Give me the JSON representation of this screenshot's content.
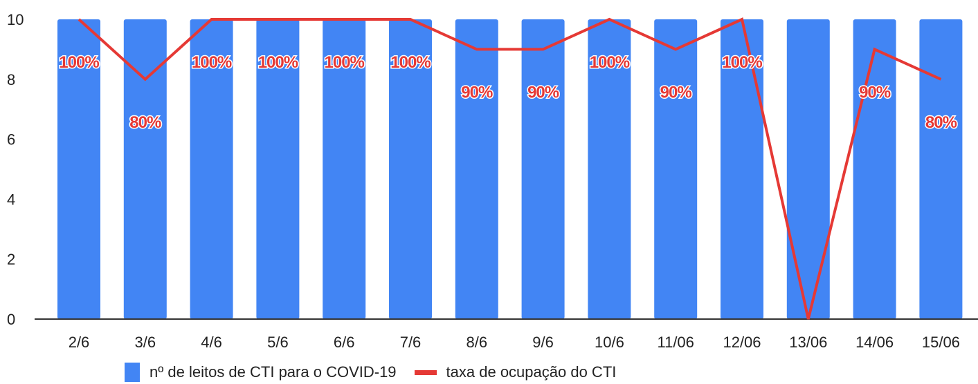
{
  "chart_data": {
    "type": "bar",
    "categories": [
      "2/6",
      "3/6",
      "4/6",
      "5/6",
      "6/6",
      "7/6",
      "8/6",
      "9/6",
      "10/6",
      "11/06",
      "12/06",
      "13/06",
      "14/06",
      "15/06"
    ],
    "series": [
      {
        "name": "nº de leitos de CTI para o COVID-19",
        "kind": "bar",
        "values": [
          10,
          10,
          10,
          10,
          10,
          10,
          10,
          10,
          10,
          10,
          10,
          10,
          10,
          10
        ]
      },
      {
        "name": "taxa de ocupação do CTI",
        "kind": "line",
        "values": [
          10,
          8,
          10,
          10,
          10,
          10,
          9,
          9,
          10,
          9,
          10,
          0,
          9,
          8
        ],
        "labels": [
          "100%",
          "80%",
          "100%",
          "100%",
          "100%",
          "100%",
          "90%",
          "90%",
          "100%",
          "90%",
          "100%",
          "",
          "90%",
          "80%"
        ]
      }
    ],
    "ylim": [
      0,
      10
    ],
    "yticks": [
      "0",
      "2",
      "4",
      "6",
      "8",
      "10"
    ],
    "xlabel": "",
    "ylabel": "",
    "grid": false,
    "legend_position": "bottom-left"
  },
  "legend": {
    "bar_label": "nº de leitos de CTI para o COVID-19",
    "line_label": "taxa de ocupação do CTI"
  },
  "colors": {
    "bar": "#4285f4",
    "line": "#e53935",
    "axis": "#333333"
  }
}
